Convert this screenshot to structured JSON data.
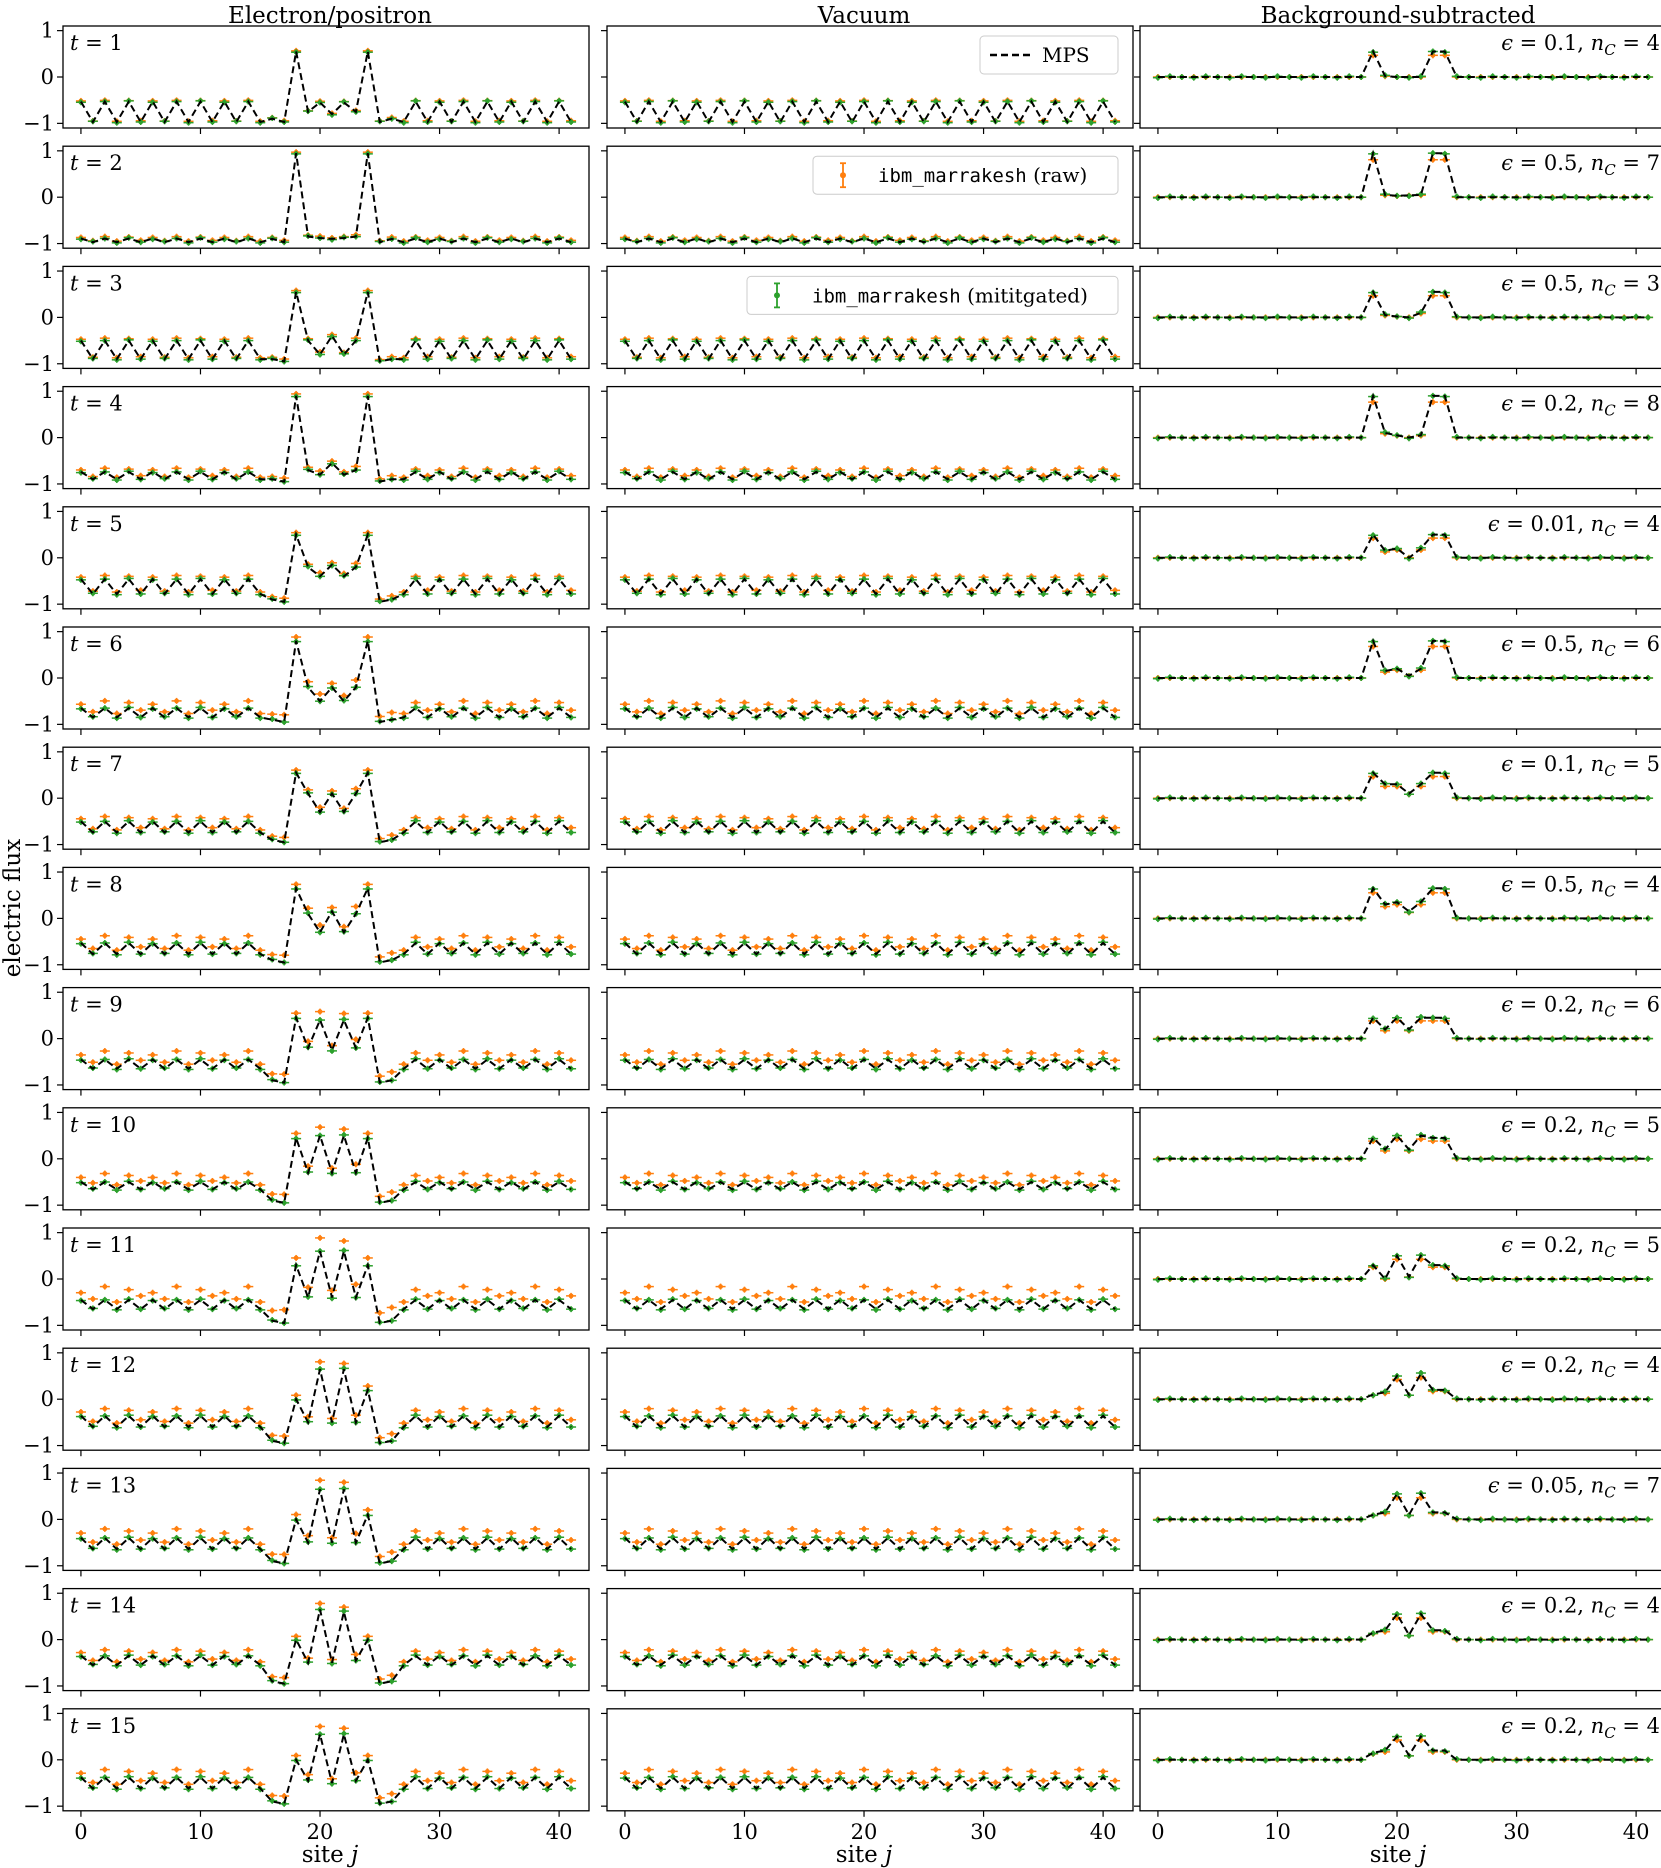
{
  "chart_data": {
    "type": "line",
    "columns": [
      "Electron/positron",
      "Vacuum",
      "Background-subtracted"
    ],
    "xlabel": "site j",
    "ylabel": "electric flux",
    "xlim": [
      -1.5,
      42.5
    ],
    "ylim": [
      -1.1,
      1.1
    ],
    "xticks": [
      0,
      10,
      20,
      30,
      40
    ],
    "yticks": [
      -1,
      0,
      1
    ],
    "n_sites": 42,
    "sources": [
      18,
      24
    ],
    "legend": [
      {
        "label": "MPS",
        "style": "dashed-line",
        "color": "#000000"
      },
      {
        "mono": "ibm_marrakesh",
        "label": " (raw)",
        "style": "errorbar",
        "color": "#ff7f0e"
      },
      {
        "mono": "ibm_marrakesh",
        "label": " (mititgated)",
        "style": "errorbar",
        "color": "#2ca02c"
      }
    ],
    "series_colors": {
      "mps": "#000000",
      "raw": "#ff7f0e",
      "mitigated": "#2ca02c"
    },
    "rows": [
      {
        "t": "t = 1",
        "params": "ϵ = 0.1, n_C = 4",
        "eps": "0.1",
        "nc": "4",
        "vac_base": -0.75,
        "vac_amp": 0.22,
        "raw_bias": 0.02,
        "peaks": [
          0.55,
          0.55
        ],
        "inner": [
          -0.75,
          -0.55,
          -0.8,
          -0.55,
          -0.75
        ],
        "sub": [
          0.55,
          0.02,
          0.0,
          0.0,
          0.0,
          0.55
        ]
      },
      {
        "t": "t = 2",
        "params": "ϵ = 0.5, n_C = 7",
        "eps": "0.5",
        "nc": "7",
        "vac_base": -0.93,
        "vac_amp": 0.04,
        "raw_bias": 0.03,
        "peaks": [
          0.95,
          0.95
        ],
        "inner": [
          -0.85,
          -0.88,
          -0.9,
          -0.88,
          -0.85
        ],
        "sub": [
          0.95,
          0.05,
          0.03,
          0.04,
          0.05,
          0.95
        ]
      },
      {
        "t": "t = 3",
        "params": "ϵ = 0.5, n_C = 3",
        "eps": "0.5",
        "nc": "3",
        "vac_base": -0.7,
        "vac_amp": 0.2,
        "raw_bias": 0.04,
        "peaks": [
          0.55,
          0.55
        ],
        "inner": [
          -0.5,
          -0.8,
          -0.4,
          -0.8,
          -0.5
        ],
        "sub": [
          0.55,
          0.05,
          0.02,
          0.0,
          0.1,
          0.55
        ]
      },
      {
        "t": "t = 4",
        "params": "ϵ = 0.2, n_C = 8",
        "eps": "0.2",
        "nc": "8",
        "vac_base": -0.82,
        "vac_amp": 0.08,
        "raw_bias": 0.06,
        "peaks": [
          0.9,
          0.9
        ],
        "inner": [
          -0.7,
          -0.8,
          -0.55,
          -0.8,
          -0.7
        ],
        "sub": [
          0.9,
          0.1,
          0.05,
          0.0,
          0.05,
          0.9
        ]
      },
      {
        "t": "t = 5",
        "params": "ϵ = 0.01, n_C = 4",
        "eps": "0.01",
        "nc": "4",
        "vac_base": -0.62,
        "vac_amp": 0.16,
        "raw_bias": 0.06,
        "peaks": [
          0.5,
          0.5
        ],
        "inner": [
          -0.2,
          -0.4,
          -0.15,
          -0.4,
          -0.2
        ],
        "sub": [
          0.5,
          0.15,
          0.2,
          0.0,
          0.2,
          0.5
        ]
      },
      {
        "t": "t = 6",
        "params": "ϵ = 0.5, n_C = 6",
        "eps": "0.5",
        "nc": "6",
        "vac_base": -0.75,
        "vac_amp": 0.1,
        "raw_bias": 0.12,
        "peaks": [
          0.8,
          0.8
        ],
        "inner": [
          -0.2,
          -0.5,
          -0.2,
          -0.5,
          -0.2
        ],
        "sub": [
          0.8,
          0.15,
          0.2,
          0.05,
          0.2,
          0.8
        ]
      },
      {
        "t": "t = 7",
        "params": "ϵ = 0.1, n_C = 5",
        "eps": "0.1",
        "nc": "5",
        "vac_base": -0.62,
        "vac_amp": 0.12,
        "raw_bias": 0.08,
        "peaks": [
          0.55,
          0.55
        ],
        "inner": [
          0.1,
          -0.3,
          0.1,
          -0.3,
          0.1
        ],
        "sub": [
          0.55,
          0.3,
          0.3,
          0.1,
          0.3,
          0.55
        ]
      },
      {
        "t": "t = 8",
        "params": "ϵ = 0.5, n_C = 4",
        "eps": "0.5",
        "nc": "4",
        "vac_base": -0.65,
        "vac_amp": 0.12,
        "raw_bias": 0.12,
        "peaks": [
          0.65,
          0.65
        ],
        "inner": [
          0.1,
          -0.3,
          0.15,
          -0.3,
          0.1
        ],
        "sub": [
          0.65,
          0.3,
          0.35,
          0.15,
          0.35,
          0.65
        ]
      },
      {
        "t": "t = 9",
        "params": "ϵ = 0.2, n_C = 6",
        "eps": "0.2",
        "nc": "6",
        "vac_base": -0.55,
        "vac_amp": 0.1,
        "raw_bias": 0.14,
        "peaks": [
          0.45,
          0.45
        ],
        "inner": [
          -0.2,
          0.4,
          -0.25,
          0.4,
          -0.2
        ],
        "sub": [
          0.45,
          0.2,
          0.45,
          0.2,
          0.45,
          0.45
        ]
      },
      {
        "t": "t = 10",
        "params": "ϵ = 0.2, n_C = 5",
        "eps": "0.2",
        "nc": "5",
        "vac_base": -0.58,
        "vac_amp": 0.08,
        "raw_bias": 0.14,
        "peaks": [
          0.45,
          0.45
        ],
        "inner": [
          -0.3,
          0.5,
          -0.3,
          0.5,
          -0.3
        ],
        "sub": [
          0.45,
          0.2,
          0.5,
          0.2,
          0.5,
          0.45
        ]
      },
      {
        "t": "t = 11",
        "params": "ϵ = 0.2, n_C = 5",
        "eps": "0.2",
        "nc": "5",
        "vac_base": -0.55,
        "vac_amp": 0.1,
        "raw_bias": 0.22,
        "peaks": [
          0.3,
          0.3
        ],
        "inner": [
          -0.4,
          0.6,
          -0.4,
          0.6,
          -0.4
        ],
        "sub": [
          0.3,
          0.0,
          0.5,
          0.05,
          0.5,
          0.3
        ]
      },
      {
        "t": "t = 12",
        "params": "ϵ = 0.2, n_C = 4",
        "eps": "0.2",
        "nc": "4",
        "vac_base": -0.48,
        "vac_amp": 0.12,
        "raw_bias": 0.12,
        "peaks": [
          0.0,
          0.2
        ],
        "inner": [
          -0.5,
          0.65,
          -0.5,
          0.65,
          -0.5
        ],
        "sub": [
          0.1,
          0.15,
          0.5,
          0.1,
          0.55,
          0.2
        ]
      },
      {
        "t": "t = 13",
        "params": "ϵ = 0.05, n_C = 7",
        "eps": "0.05",
        "nc": "7",
        "vac_base": -0.52,
        "vac_amp": 0.12,
        "raw_bias": 0.15,
        "peaks": [
          0.0,
          0.1
        ],
        "inner": [
          -0.5,
          0.65,
          -0.5,
          0.65,
          -0.5
        ],
        "sub": [
          0.1,
          0.15,
          0.55,
          0.1,
          0.55,
          0.15
        ]
      },
      {
        "t": "t = 14",
        "params": "ϵ = 0.2, n_C = 4",
        "eps": "0.2",
        "nc": "4",
        "vac_base": -0.45,
        "vac_amp": 0.1,
        "raw_bias": 0.1,
        "peaks": [
          0.0,
          0.0
        ],
        "inner": [
          -0.5,
          0.65,
          -0.5,
          0.6,
          -0.45
        ],
        "sub": [
          0.15,
          0.2,
          0.55,
          0.1,
          0.55,
          0.2
        ]
      },
      {
        "t": "t = 15",
        "params": "ϵ = 0.2, n_C = 4",
        "eps": "0.2",
        "nc": "4",
        "vac_base": -0.5,
        "vac_amp": 0.12,
        "raw_bias": 0.13,
        "peaks": [
          0.0,
          0.0
        ],
        "inner": [
          -0.45,
          0.55,
          -0.5,
          0.55,
          -0.45
        ],
        "sub": [
          0.15,
          0.2,
          0.5,
          0.1,
          0.5,
          0.2
        ]
      }
    ]
  }
}
